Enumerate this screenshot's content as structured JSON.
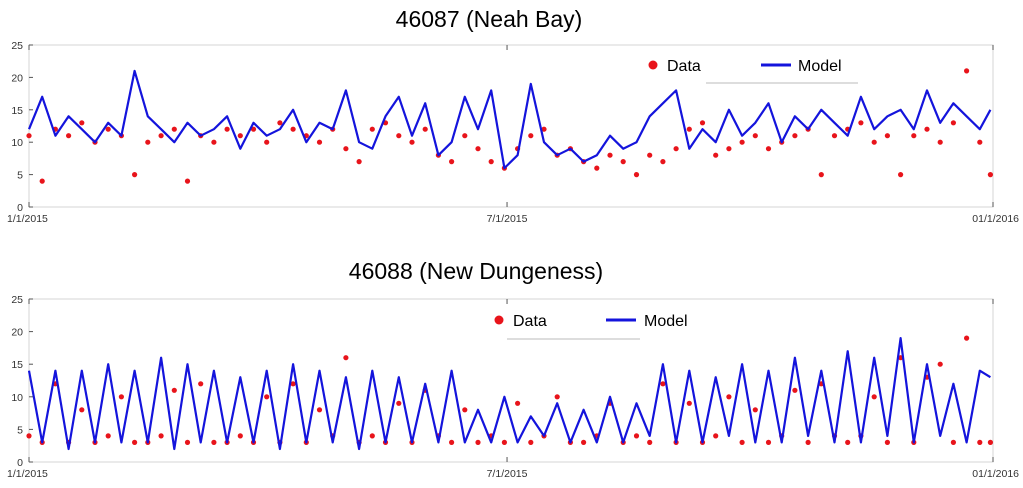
{
  "chart_data": [
    {
      "type": "line",
      "title": "46087 (Neah Bay)",
      "xlabel": "",
      "ylabel": "",
      "x_range": [
        "1/1/2015",
        "1/1/2016"
      ],
      "x_ticks": [
        {
          "date": "2015-01-01",
          "label": "1/1/2015"
        },
        {
          "date": "2015-07-01",
          "label": "7/1/2015"
        },
        {
          "date": "2016-01-01",
          "label": "01/1/2016"
        }
      ],
      "ylim": [
        0,
        25
      ],
      "y_ticks": [
        "0",
        "5",
        "10",
        "15",
        "20",
        "25"
      ],
      "grid": false,
      "legend_position": "top-right",
      "series": [
        {
          "name": "Data",
          "style": "markers",
          "color": "#e8141b",
          "x": [
            "2015-01-01",
            "2015-01-06",
            "2015-01-11",
            "2015-01-16",
            "2015-01-21",
            "2015-01-26",
            "2015-01-31",
            "2015-02-05",
            "2015-02-10",
            "2015-02-15",
            "2015-02-20",
            "2015-02-25",
            "2015-03-02",
            "2015-03-07",
            "2015-03-12",
            "2015-03-17",
            "2015-03-22",
            "2015-03-27",
            "2015-04-01",
            "2015-04-06",
            "2015-04-11",
            "2015-04-16",
            "2015-04-21",
            "2015-04-26",
            "2015-05-01",
            "2015-05-06",
            "2015-05-11",
            "2015-05-16",
            "2015-05-21",
            "2015-05-26",
            "2015-05-31",
            "2015-06-05",
            "2015-06-10",
            "2015-06-15",
            "2015-06-20",
            "2015-06-25",
            "2015-06-30",
            "2015-07-05",
            "2015-07-10",
            "2015-07-15",
            "2015-07-20",
            "2015-07-25",
            "2015-07-30",
            "2015-08-04",
            "2015-08-09",
            "2015-08-14",
            "2015-08-19",
            "2015-08-24",
            "2015-08-29",
            "2015-09-03",
            "2015-09-08",
            "2015-09-13",
            "2015-09-18",
            "2015-09-23",
            "2015-09-28",
            "2015-10-03",
            "2015-10-08",
            "2015-10-13",
            "2015-10-18",
            "2015-10-23",
            "2015-10-28",
            "2015-11-02",
            "2015-11-07",
            "2015-11-12",
            "2015-11-17",
            "2015-11-22",
            "2015-11-27",
            "2015-12-02",
            "2015-12-07",
            "2015-12-12",
            "2015-12-17",
            "2015-12-22",
            "2015-12-27",
            "2015-12-31"
          ],
          "y": [
            11,
            4,
            12,
            11,
            13,
            10,
            12,
            11,
            5,
            10,
            11,
            12,
            4,
            11,
            10,
            12,
            11,
            12,
            10,
            13,
            12,
            11,
            10,
            12,
            9,
            7,
            12,
            13,
            11,
            10,
            12,
            8,
            7,
            11,
            9,
            7,
            6,
            9,
            11,
            12,
            8,
            9,
            7,
            6,
            8,
            7,
            5,
            8,
            7,
            9,
            12,
            13,
            8,
            9,
            10,
            11,
            9,
            10,
            11,
            12,
            5,
            11,
            12,
            13,
            10,
            11,
            5,
            11,
            12,
            10,
            13,
            21,
            10,
            5
          ]
        },
        {
          "name": "Model",
          "style": "line",
          "color": "#1414dc",
          "x": [
            "2015-01-01",
            "2015-01-06",
            "2015-01-11",
            "2015-01-16",
            "2015-01-21",
            "2015-01-26",
            "2015-01-31",
            "2015-02-05",
            "2015-02-10",
            "2015-02-15",
            "2015-02-20",
            "2015-02-25",
            "2015-03-02",
            "2015-03-07",
            "2015-03-12",
            "2015-03-17",
            "2015-03-22",
            "2015-03-27",
            "2015-04-01",
            "2015-04-06",
            "2015-04-11",
            "2015-04-16",
            "2015-04-21",
            "2015-04-26",
            "2015-05-01",
            "2015-05-06",
            "2015-05-11",
            "2015-05-16",
            "2015-05-21",
            "2015-05-26",
            "2015-05-31",
            "2015-06-05",
            "2015-06-10",
            "2015-06-15",
            "2015-06-20",
            "2015-06-25",
            "2015-06-30",
            "2015-07-05",
            "2015-07-10",
            "2015-07-15",
            "2015-07-20",
            "2015-07-25",
            "2015-07-30",
            "2015-08-04",
            "2015-08-09",
            "2015-08-14",
            "2015-08-19",
            "2015-08-24",
            "2015-08-29",
            "2015-09-03",
            "2015-09-08",
            "2015-09-13",
            "2015-09-18",
            "2015-09-23",
            "2015-09-28",
            "2015-10-03",
            "2015-10-08",
            "2015-10-13",
            "2015-10-18",
            "2015-10-23",
            "2015-10-28",
            "2015-11-02",
            "2015-11-07",
            "2015-11-12",
            "2015-11-17",
            "2015-11-22",
            "2015-11-27",
            "2015-12-02",
            "2015-12-07",
            "2015-12-12",
            "2015-12-17",
            "2015-12-22",
            "2015-12-27",
            "2015-12-31"
          ],
          "y": [
            12,
            17,
            11,
            14,
            12,
            10,
            13,
            11,
            21,
            14,
            12,
            10,
            13,
            11,
            12,
            14,
            9,
            13,
            11,
            12,
            15,
            10,
            13,
            12,
            18,
            10,
            9,
            14,
            17,
            11,
            16,
            8,
            10,
            17,
            12,
            18,
            6,
            8,
            19,
            10,
            8,
            9,
            7,
            8,
            11,
            9,
            10,
            14,
            16,
            18,
            9,
            12,
            10,
            15,
            11,
            13,
            16,
            10,
            14,
            12,
            15,
            13,
            11,
            17,
            12,
            14,
            15,
            12,
            18,
            13,
            16,
            14,
            12,
            15
          ]
        }
      ]
    },
    {
      "type": "line",
      "title": "46088 (New Dungeness)",
      "xlabel": "",
      "ylabel": "",
      "x_range": [
        "1/1/2015",
        "1/1/2016"
      ],
      "x_ticks": [
        {
          "date": "2015-01-01",
          "label": "1/1/2015"
        },
        {
          "date": "2015-07-01",
          "label": "7/1/2015"
        },
        {
          "date": "2016-01-01",
          "label": "01/1/2016"
        }
      ],
      "ylim": [
        0,
        25
      ],
      "y_ticks": [
        "0",
        "5",
        "10",
        "15",
        "20",
        "25"
      ],
      "grid": false,
      "legend_position": "top-center",
      "series": [
        {
          "name": "Data",
          "style": "markers",
          "color": "#e8141b",
          "x": [
            "2015-01-01",
            "2015-01-06",
            "2015-01-11",
            "2015-01-16",
            "2015-01-21",
            "2015-01-26",
            "2015-01-31",
            "2015-02-05",
            "2015-02-10",
            "2015-02-15",
            "2015-02-20",
            "2015-02-25",
            "2015-03-02",
            "2015-03-07",
            "2015-03-12",
            "2015-03-17",
            "2015-03-22",
            "2015-03-27",
            "2015-04-01",
            "2015-04-06",
            "2015-04-11",
            "2015-04-16",
            "2015-04-21",
            "2015-04-26",
            "2015-05-01",
            "2015-05-06",
            "2015-05-11",
            "2015-05-16",
            "2015-05-21",
            "2015-05-26",
            "2015-05-31",
            "2015-06-05",
            "2015-06-10",
            "2015-06-15",
            "2015-06-20",
            "2015-06-25",
            "2015-06-30",
            "2015-07-05",
            "2015-07-10",
            "2015-07-15",
            "2015-07-20",
            "2015-07-25",
            "2015-07-30",
            "2015-08-04",
            "2015-08-09",
            "2015-08-14",
            "2015-08-19",
            "2015-08-24",
            "2015-08-29",
            "2015-09-03",
            "2015-09-08",
            "2015-09-13",
            "2015-09-18",
            "2015-09-23",
            "2015-09-28",
            "2015-10-03",
            "2015-10-08",
            "2015-10-13",
            "2015-10-18",
            "2015-10-23",
            "2015-10-28",
            "2015-11-02",
            "2015-11-07",
            "2015-11-12",
            "2015-11-17",
            "2015-11-22",
            "2015-11-27",
            "2015-12-02",
            "2015-12-07",
            "2015-12-12",
            "2015-12-17",
            "2015-12-22",
            "2015-12-27",
            "2015-12-31"
          ],
          "y": [
            4,
            3,
            12,
            3,
            8,
            3,
            4,
            10,
            3,
            3,
            4,
            11,
            3,
            12,
            3,
            3,
            4,
            3,
            10,
            3,
            12,
            3,
            8,
            4,
            16,
            3,
            4,
            3,
            9,
            3,
            11,
            4,
            3,
            8,
            3,
            4,
            3,
            9,
            3,
            4,
            10,
            3,
            3,
            4,
            9,
            3,
            4,
            3,
            12,
            3,
            9,
            3,
            4,
            10,
            3,
            8,
            3,
            4,
            11,
            3,
            12,
            4,
            3,
            4,
            10,
            3,
            16,
            3,
            13,
            15,
            3,
            19,
            3,
            3
          ]
        },
        {
          "name": "Model",
          "style": "line",
          "color": "#1414dc",
          "x": [
            "2015-01-01",
            "2015-01-06",
            "2015-01-11",
            "2015-01-16",
            "2015-01-21",
            "2015-01-26",
            "2015-01-31",
            "2015-02-05",
            "2015-02-10",
            "2015-02-15",
            "2015-02-20",
            "2015-02-25",
            "2015-03-02",
            "2015-03-07",
            "2015-03-12",
            "2015-03-17",
            "2015-03-22",
            "2015-03-27",
            "2015-04-01",
            "2015-04-06",
            "2015-04-11",
            "2015-04-16",
            "2015-04-21",
            "2015-04-26",
            "2015-05-01",
            "2015-05-06",
            "2015-05-11",
            "2015-05-16",
            "2015-05-21",
            "2015-05-26",
            "2015-05-31",
            "2015-06-05",
            "2015-06-10",
            "2015-06-15",
            "2015-06-20",
            "2015-06-25",
            "2015-06-30",
            "2015-07-05",
            "2015-07-10",
            "2015-07-15",
            "2015-07-20",
            "2015-07-25",
            "2015-07-30",
            "2015-08-04",
            "2015-08-09",
            "2015-08-14",
            "2015-08-19",
            "2015-08-24",
            "2015-08-29",
            "2015-09-03",
            "2015-09-08",
            "2015-09-13",
            "2015-09-18",
            "2015-09-23",
            "2015-09-28",
            "2015-10-03",
            "2015-10-08",
            "2015-10-13",
            "2015-10-18",
            "2015-10-23",
            "2015-10-28",
            "2015-11-02",
            "2015-11-07",
            "2015-11-12",
            "2015-11-17",
            "2015-11-22",
            "2015-11-27",
            "2015-12-02",
            "2015-12-07",
            "2015-12-12",
            "2015-12-17",
            "2015-12-22",
            "2015-12-27",
            "2015-12-31"
          ],
          "y": [
            14,
            3,
            14,
            2,
            14,
            3,
            15,
            3,
            14,
            3,
            16,
            2,
            15,
            3,
            14,
            3,
            13,
            3,
            14,
            2,
            15,
            3,
            14,
            3,
            13,
            2,
            14,
            3,
            13,
            3,
            12,
            3,
            14,
            3,
            8,
            3,
            10,
            3,
            7,
            4,
            9,
            3,
            8,
            3,
            10,
            3,
            9,
            4,
            15,
            3,
            14,
            3,
            13,
            4,
            15,
            3,
            14,
            3,
            16,
            4,
            14,
            3,
            17,
            3,
            16,
            4,
            19,
            3,
            15,
            4,
            12,
            3,
            14,
            13
          ]
        }
      ]
    }
  ],
  "legend": [
    {
      "label": "Data",
      "symbol": "dot",
      "color": "#e8141b"
    },
    {
      "label": "Model",
      "symbol": "line",
      "color": "#1414dc"
    }
  ]
}
